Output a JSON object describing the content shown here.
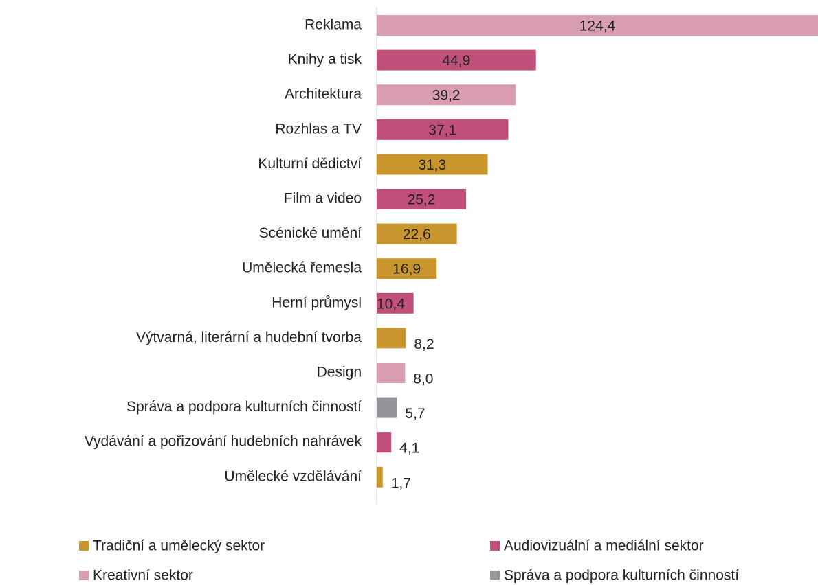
{
  "chart_data": {
    "type": "bar",
    "orientation": "horizontal",
    "categories": [
      "Reklama",
      "Knihy a tisk",
      "Architektura",
      "Rozhlas a TV",
      "Kulturní dědictví",
      "Film a video",
      "Scénické umění",
      "Umělecká řemesla",
      "Herní průmysl",
      "Výtvarná, literární a hudební tvorba",
      "Design",
      "Správa a podpora kulturních činností",
      "Vydávání a pořizování hudebních nahrávek",
      "Umělecké vzdělávání"
    ],
    "series": [
      {
        "name": "Tradiční a umělecký sektor",
        "color": "#c9952d",
        "values": [
          null,
          null,
          null,
          null,
          31.3,
          null,
          22.6,
          16.9,
          null,
          8.2,
          null,
          null,
          null,
          1.7
        ],
        "value_labels": [
          null,
          null,
          null,
          null,
          "31,3",
          null,
          "22,6",
          "16,9",
          null,
          "8,2",
          null,
          null,
          null,
          "1,7"
        ]
      },
      {
        "name": "Audiovizuální a mediální sektor",
        "color": "#c0507a",
        "values": [
          null,
          44.9,
          null,
          37.1,
          null,
          25.2,
          null,
          null,
          10.4,
          null,
          null,
          null,
          4.1,
          null
        ],
        "value_labels": [
          null,
          "44,9",
          null,
          "37,1",
          null,
          "25,2",
          null,
          null,
          "10,4",
          null,
          null,
          null,
          "4,1",
          null
        ]
      },
      {
        "name": "Kreativní sektor",
        "color": "#d99db3",
        "values": [
          124.4,
          null,
          39.2,
          null,
          null,
          null,
          null,
          null,
          null,
          null,
          8.0,
          null,
          null,
          null
        ],
        "value_labels": [
          "124,4",
          null,
          "39,2",
          null,
          null,
          null,
          null,
          null,
          null,
          null,
          "8,0",
          null,
          null,
          null
        ]
      },
      {
        "name": "Správa a podpora kulturních činností",
        "color": "#939598",
        "values": [
          null,
          null,
          null,
          null,
          null,
          null,
          null,
          null,
          null,
          null,
          null,
          5.7,
          null,
          null
        ],
        "value_labels": [
          null,
          null,
          null,
          null,
          null,
          null,
          null,
          null,
          null,
          null,
          null,
          "5,7",
          null,
          null
        ]
      }
    ]
  }
}
